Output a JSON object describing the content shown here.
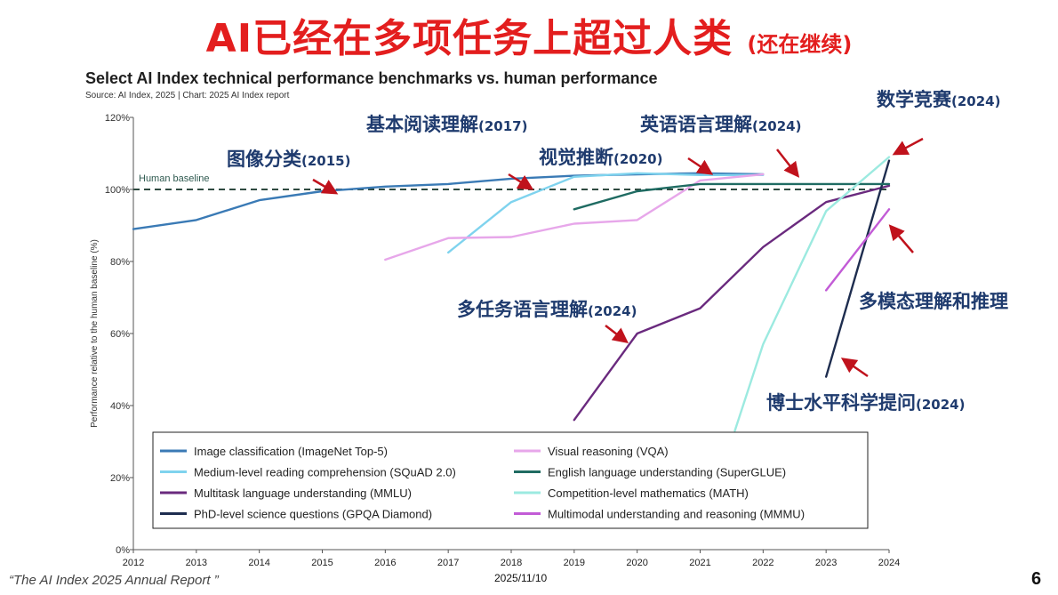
{
  "slide": {
    "title": "AI已经在多项任务上超过人类",
    "title_suffix": "(还在继续)",
    "footer_source": "“The AI Index 2025 Annual Report ”",
    "date": "2025/11/10",
    "page_number": "6",
    "title_color": "#e31e1e",
    "annotation_color": "#1f3b6e",
    "arrow_color": "#c0121c"
  },
  "annotations": [
    {
      "label": "图像分类",
      "year": "(2015)"
    },
    {
      "label": "基本阅读理解",
      "year": "(2017)"
    },
    {
      "label": "视觉推断",
      "year": "(2020)"
    },
    {
      "label": "英语语言理解",
      "year": "(2024)"
    },
    {
      "label": "数学竞赛",
      "year": "(2024)"
    },
    {
      "label": "多任务语言理解",
      "year": "(2024)"
    },
    {
      "label": "多模态理解和推理",
      "year": ""
    },
    {
      "label": "博士水平科学提问",
      "year": "(2024)"
    }
  ],
  "chart_data": {
    "type": "line",
    "title": "Select AI Index technical performance benchmarks vs. human performance",
    "subtitle": "Source: AI Index, 2025 | Chart: 2025 AI Index report",
    "xlabel": "",
    "ylabel": "Performance relative to the human baseline (%)",
    "x": [
      2012,
      2013,
      2014,
      2015,
      2016,
      2017,
      2018,
      2019,
      2020,
      2021,
      2022,
      2023,
      2024
    ],
    "x_tick_labels": [
      "2012",
      "2013",
      "2014",
      "2015",
      "2016",
      "2017",
      "2018",
      "2019",
      "2020",
      "2021",
      "2022",
      "2023",
      "2024"
    ],
    "ylim": [
      0,
      120
    ],
    "y_ticks": [
      0,
      20,
      40,
      60,
      80,
      100,
      120
    ],
    "y_tick_labels": [
      "0%",
      "20%",
      "40%",
      "60%",
      "80%",
      "100%",
      "120%"
    ],
    "grid": false,
    "baseline": {
      "label": "Human baseline",
      "value": 100
    },
    "legend_position": "bottom",
    "series": [
      {
        "name": "Image classification (ImageNet Top-5)",
        "color": "#3a7ab5",
        "points": [
          [
            2012,
            89
          ],
          [
            2013,
            91.5
          ],
          [
            2014,
            97
          ],
          [
            2015,
            99.5
          ],
          [
            2016,
            100.8
          ],
          [
            2017,
            101.5
          ],
          [
            2018,
            103
          ],
          [
            2019,
            103.8
          ],
          [
            2020,
            104.2
          ],
          [
            2021,
            104.5
          ],
          [
            2022,
            104.2
          ]
        ]
      },
      {
        "name": "Medium-level reading comprehension (SQuAD 2.0)",
        "color": "#7fd3ee",
        "points": [
          [
            2017,
            82.5
          ],
          [
            2018,
            96.5
          ],
          [
            2019,
            103.5
          ],
          [
            2020,
            104.5
          ],
          [
            2021,
            104
          ],
          [
            2022,
            104
          ]
        ]
      },
      {
        "name": "Multitask language understanding (MMLU)",
        "color": "#6a2a7e",
        "points": [
          [
            2019,
            36
          ],
          [
            2020,
            60
          ],
          [
            2021,
            67
          ],
          [
            2022,
            84
          ],
          [
            2023,
            96.5
          ],
          [
            2024,
            101
          ]
        ]
      },
      {
        "name": "PhD-level science questions (GPQA Diamond)",
        "color": "#1e2d4f",
        "points": [
          [
            2023,
            48
          ],
          [
            2024,
            108
          ]
        ]
      },
      {
        "name": "Visual reasoning (VQA)",
        "color": "#e7a7ea",
        "points": [
          [
            2016,
            80.5
          ],
          [
            2017,
            86.5
          ],
          [
            2018,
            86.8
          ],
          [
            2019,
            90.5
          ],
          [
            2020,
            91.5
          ],
          [
            2021,
            102.5
          ],
          [
            2022,
            104.2
          ]
        ]
      },
      {
        "name": "English language understanding (SuperGLUE)",
        "color": "#1f6b62",
        "points": [
          [
            2019,
            94.5
          ],
          [
            2020,
            99.5
          ],
          [
            2021,
            101.5
          ],
          [
            2022,
            101.5
          ],
          [
            2023,
            101.5
          ],
          [
            2024,
            101.5
          ]
        ]
      },
      {
        "name": "Competition-level mathematics (MATH)",
        "color": "#9ceae0",
        "points": [
          [
            2021.55,
            33
          ],
          [
            2022,
            57
          ],
          [
            2023,
            94
          ],
          [
            2024,
            109
          ]
        ]
      },
      {
        "name": "Multimodal understanding and reasoning (MMMU)",
        "color": "#c25bd6",
        "points": [
          [
            2023,
            72
          ],
          [
            2024,
            94.5
          ]
        ]
      }
    ]
  }
}
